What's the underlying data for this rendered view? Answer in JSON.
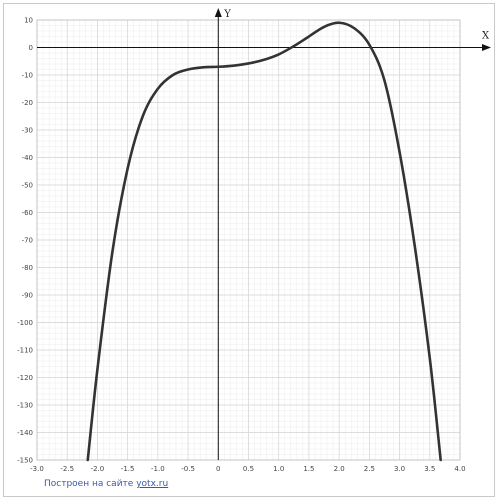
{
  "chart_data": {
    "type": "line",
    "xlabel": "X",
    "ylabel": "Y",
    "xlim": [
      -3.0,
      4.0
    ],
    "ylim": [
      -150,
      10
    ],
    "grid": true,
    "x_ticks": [
      "-3.0",
      "-2.5",
      "-2.0",
      "-1.5",
      "-1.0",
      "-0.5",
      "0",
      "0.5",
      "1.0",
      "1.5",
      "2.0",
      "2.5",
      "3.0",
      "3.5",
      "4.0"
    ],
    "y_ticks": [
      "10",
      "0",
      "-10",
      "-20",
      "-30",
      "-40",
      "-50",
      "-60",
      "-70",
      "-80",
      "-90",
      "-100",
      "-110",
      "-120",
      "-130",
      "-140",
      "-150"
    ],
    "series": [
      {
        "color": "#333333",
        "x": [
          -2.16,
          -2.0,
          -1.75,
          -1.5,
          -1.25,
          -1.0,
          -0.75,
          -0.5,
          -0.25,
          0,
          0.25,
          0.5,
          0.75,
          1.0,
          1.25,
          1.5,
          1.75,
          2.0,
          2.25,
          2.5,
          2.75,
          3.0,
          3.25,
          3.5,
          3.68
        ],
        "y": [
          -150,
          -117,
          -74,
          -44,
          -25,
          -15,
          -10,
          -8,
          -7.2,
          -7,
          -6.6,
          -5.8,
          -4.5,
          -2.5,
          0.5,
          4,
          7.5,
          9,
          7,
          1,
          -12,
          -38,
          -72,
          -113,
          -150
        ]
      }
    ]
  },
  "credit": {
    "prefix": "Построен на сайте",
    "link": "yotx.ru"
  }
}
